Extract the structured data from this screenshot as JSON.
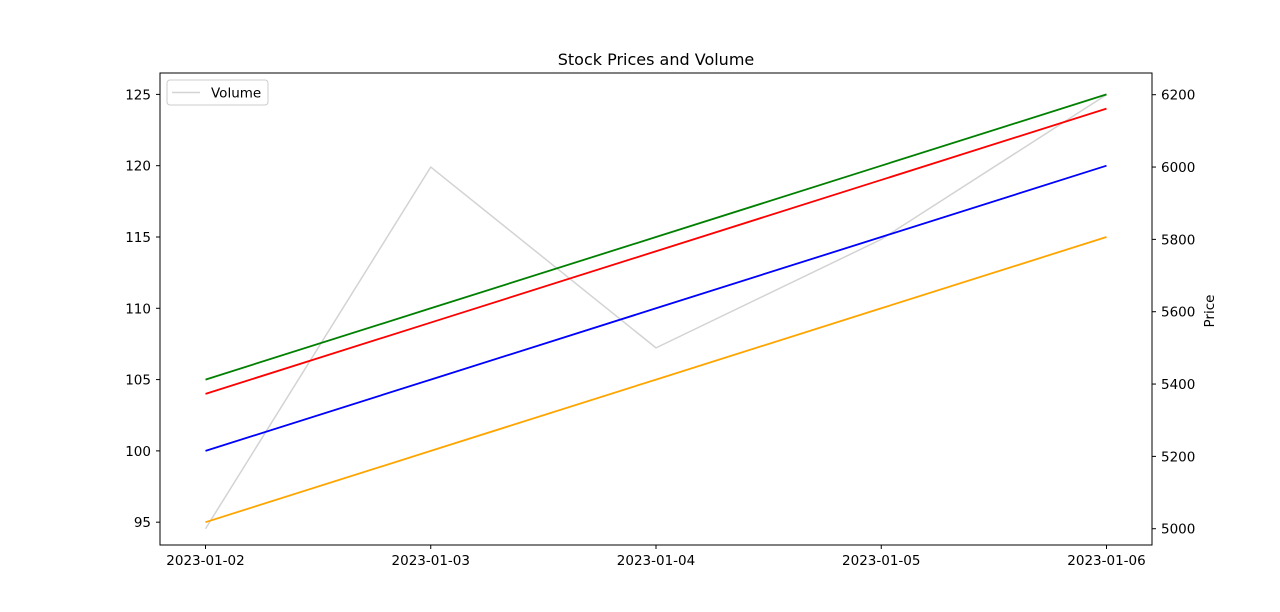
{
  "chart_data": {
    "type": "line",
    "title": "Stock Prices and Volume",
    "xlabel": "",
    "ylabel_left": "",
    "ylabel_right": "Price",
    "x": [
      "2023-01-02",
      "2023-01-03",
      "2023-01-04",
      "2023-01-05",
      "2023-01-06"
    ],
    "left_axis": {
      "ylim": [
        93.4,
        126.5
      ],
      "ticks": [
        95,
        100,
        105,
        110,
        115,
        120,
        125
      ]
    },
    "right_axis": {
      "ylim": [
        4955,
        6260
      ],
      "ticks": [
        5000,
        5200,
        5400,
        5600,
        5800,
        6000,
        6200
      ]
    },
    "series": [
      {
        "axis": "left",
        "color": "#008000",
        "values": [
          105,
          110,
          115,
          120,
          125
        ]
      },
      {
        "axis": "left",
        "color": "#ff0000",
        "values": [
          104,
          109,
          114,
          119,
          124
        ]
      },
      {
        "axis": "left",
        "color": "#0000ff",
        "values": [
          100,
          105,
          110,
          115,
          120
        ]
      },
      {
        "axis": "left",
        "color": "#ffa500",
        "values": [
          95,
          100,
          105,
          110,
          115
        ]
      },
      {
        "name": "Volume",
        "axis": "right",
        "color": "#d3d3d3",
        "values": [
          5000,
          6000,
          5500,
          5800,
          6200
        ]
      }
    ],
    "legend": {
      "position": "top-left",
      "entries": [
        "Volume"
      ]
    },
    "grid": false
  }
}
